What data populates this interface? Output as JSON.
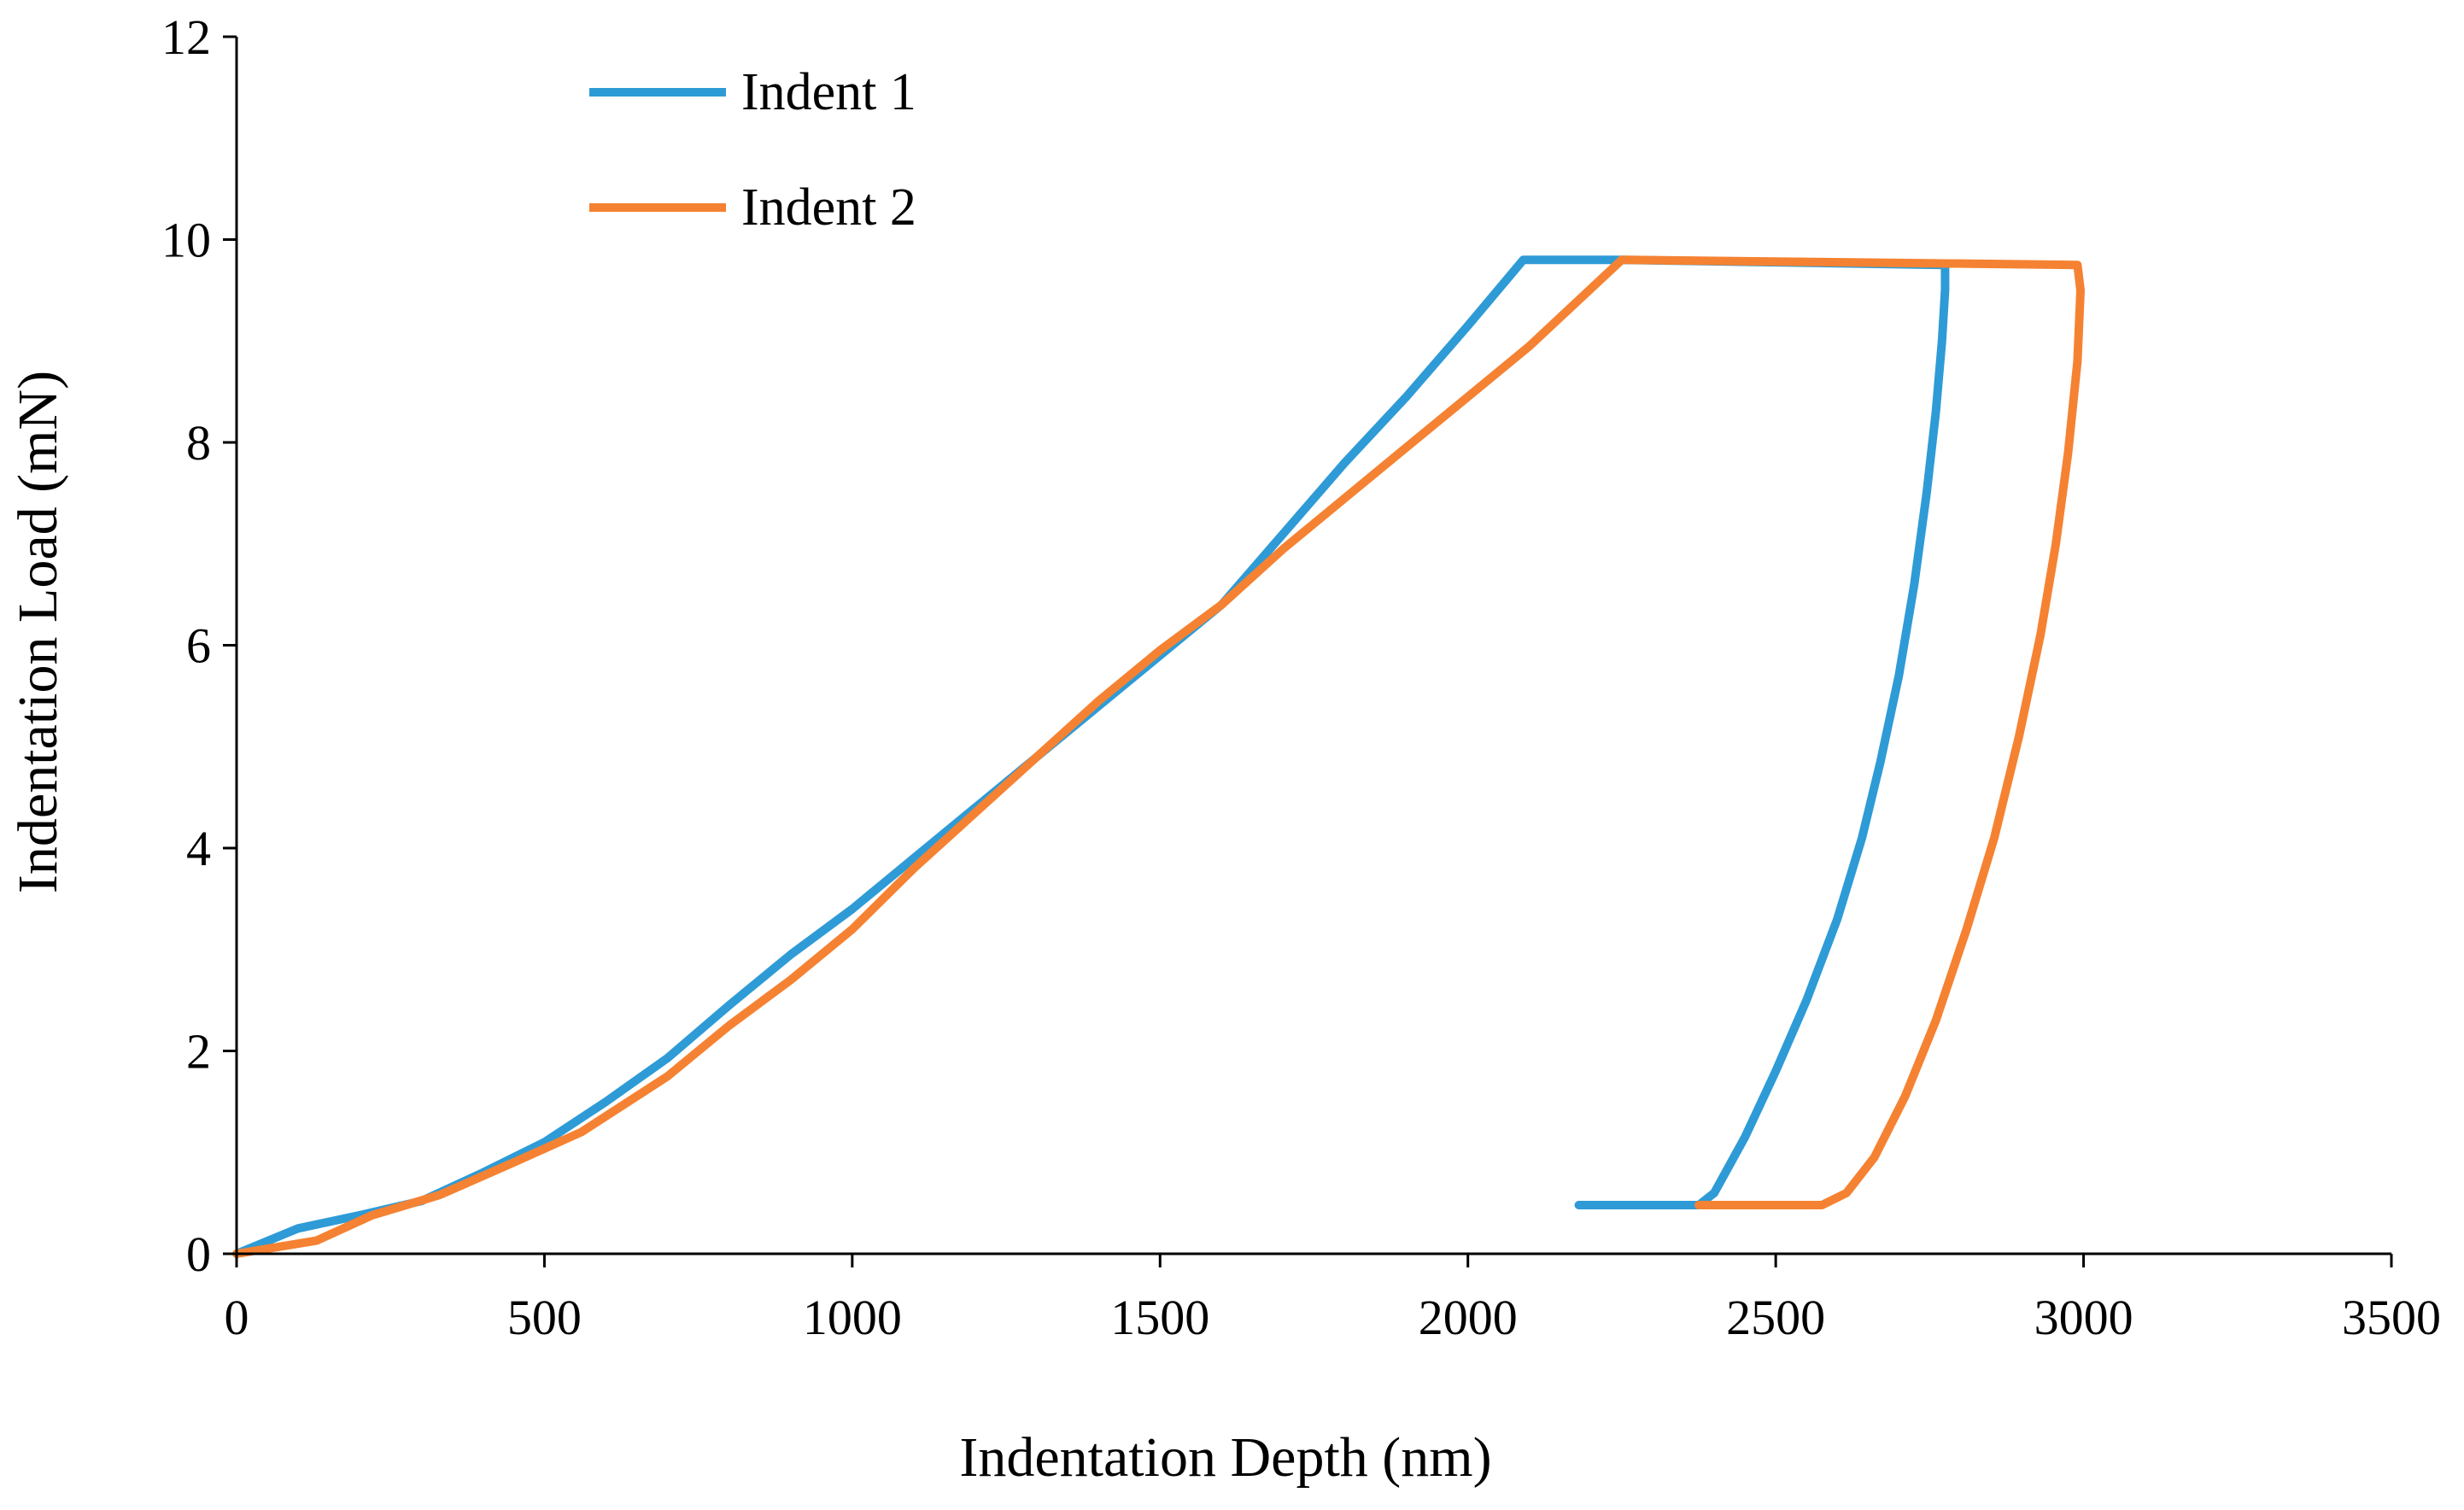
{
  "chart_data": {
    "type": "line",
    "title": "",
    "xlabel": "Indentation Depth (nm)",
    "ylabel": "Indentation Load (mN)",
    "xlim": [
      0,
      3500
    ],
    "ylim": [
      0,
      12
    ],
    "xticks": [
      0,
      500,
      1000,
      1500,
      2000,
      2500,
      3000,
      3500
    ],
    "yticks": [
      0,
      2,
      4,
      6,
      8,
      10,
      12
    ],
    "grid": false,
    "legend_position": "top-left",
    "series": [
      {
        "name": "Indent 1",
        "color": "#2E9BD6",
        "x": [
          0,
          100,
          200,
          300,
          400,
          500,
          600,
          700,
          800,
          900,
          1000,
          1100,
          1200,
          1300,
          1400,
          1500,
          1600,
          1700,
          1800,
          1900,
          2000,
          2090,
          2240,
          2775,
          2775,
          2770,
          2760,
          2745,
          2725,
          2700,
          2670,
          2640,
          2600,
          2550,
          2500,
          2450,
          2400,
          2375,
          2375,
          2180
        ],
        "y": [
          0,
          0.25,
          0.38,
          0.52,
          0.8,
          1.1,
          1.5,
          1.93,
          2.45,
          2.95,
          3.4,
          3.9,
          4.4,
          4.9,
          5.4,
          5.9,
          6.4,
          7.1,
          7.8,
          8.45,
          9.15,
          9.8,
          9.8,
          9.75,
          9.5,
          9.0,
          8.3,
          7.5,
          6.6,
          5.7,
          4.85,
          4.1,
          3.3,
          2.5,
          1.8,
          1.15,
          0.6,
          0.48,
          0.48,
          0.48
        ],
        "segments": [
          "loading",
          "hold",
          "unloading"
        ]
      },
      {
        "name": "Indent 2",
        "color": "#F58232",
        "x": [
          0,
          130,
          220,
          330,
          450,
          560,
          700,
          800,
          900,
          1000,
          1100,
          1200,
          1300,
          1400,
          1500,
          1600,
          1700,
          1800,
          1900,
          2000,
          2100,
          2250,
          2990,
          2995,
          2990,
          2975,
          2955,
          2930,
          2895,
          2855,
          2810,
          2760,
          2710,
          2660,
          2615,
          2575,
          2575,
          2375
        ],
        "y": [
          0,
          0.13,
          0.38,
          0.58,
          0.9,
          1.2,
          1.75,
          2.25,
          2.7,
          3.2,
          3.8,
          4.35,
          4.9,
          5.45,
          5.95,
          6.4,
          6.95,
          7.45,
          7.95,
          8.45,
          8.95,
          9.8,
          9.75,
          9.5,
          8.8,
          7.9,
          7.0,
          6.1,
          5.1,
          4.1,
          3.2,
          2.3,
          1.55,
          0.95,
          0.6,
          0.48,
          0.48,
          0.48
        ],
        "segments": [
          "loading",
          "hold",
          "unloading"
        ]
      }
    ]
  }
}
